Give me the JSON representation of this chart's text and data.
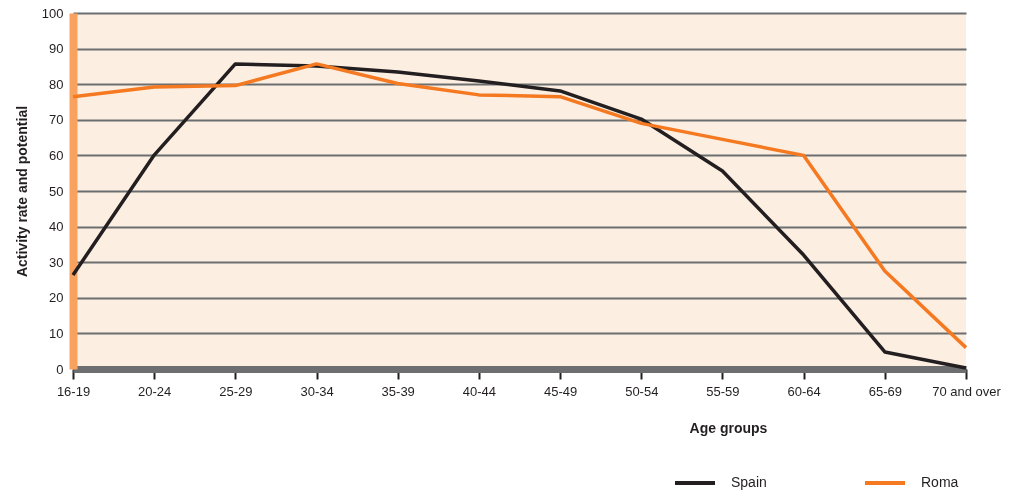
{
  "chart_data": {
    "type": "line",
    "xlabel": "Age groups",
    "ylabel": "Activity rate and potential",
    "categories": [
      "16-19",
      "20-24",
      "25-29",
      "30-34",
      "35-39",
      "40-44",
      "45-49",
      "50-54",
      "55-59",
      "60-64",
      "65-69",
      "70 and over"
    ],
    "series": [
      {
        "name": "Spain",
        "color": "#231f20",
        "values": [
          26.4,
          60.1,
          85.7,
          85.1,
          83.4,
          80.9,
          78.1,
          70.2,
          55.6,
          32,
          4.8,
          0.3
        ]
      },
      {
        "name": "Roma",
        "color": "#f47920",
        "values": [
          76.5,
          79.2,
          79.6,
          85.7,
          80.2,
          77,
          76.5,
          69,
          64.5,
          60,
          27.5,
          6
        ]
      }
    ],
    "ylim": [
      0,
      100
    ],
    "yticks": [
      0,
      10,
      20,
      30,
      40,
      50,
      60,
      70,
      80,
      90,
      100
    ],
    "grid": "y",
    "legend": "bottom right"
  }
}
